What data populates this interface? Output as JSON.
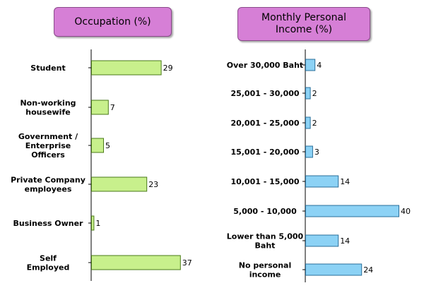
{
  "chart_data": [
    {
      "type": "bar",
      "orientation": "horizontal",
      "title": "Occupation (%)",
      "categories": [
        [
          "Student"
        ],
        [
          "Non-working",
          "housewife"
        ],
        [
          "Government /",
          "Enterprise",
          "Officers"
        ],
        [
          "Private Company",
          "employees"
        ],
        [
          "Business Owner"
        ],
        [
          "Self",
          "Employed"
        ]
      ],
      "values": [
        29,
        7,
        5,
        23,
        1,
        37
      ],
      "color": "#c8f08c",
      "stroke": "#4a7a18"
    },
    {
      "type": "bar",
      "orientation": "horizontal",
      "title": "Monthly Personal Income (%)",
      "categories": [
        [
          "Over 30,000 Baht"
        ],
        [
          "25,001 - 30,000"
        ],
        [
          "20,001 - 25,000"
        ],
        [
          "15,001 - 20,000"
        ],
        [
          "10,001 - 15,000"
        ],
        [
          "5,000 - 10,000"
        ],
        [
          "Lower than 5,000",
          "Baht"
        ],
        [
          "No personal",
          "income"
        ]
      ],
      "values": [
        4,
        2,
        2,
        3,
        14,
        40,
        14,
        24
      ],
      "color": "#8cd2f5",
      "stroke": "#2a6f9a"
    }
  ],
  "titles": {
    "occupation": "Occupation (%)",
    "income_line1": "Monthly Personal",
    "income_line2": "Income (%)"
  }
}
